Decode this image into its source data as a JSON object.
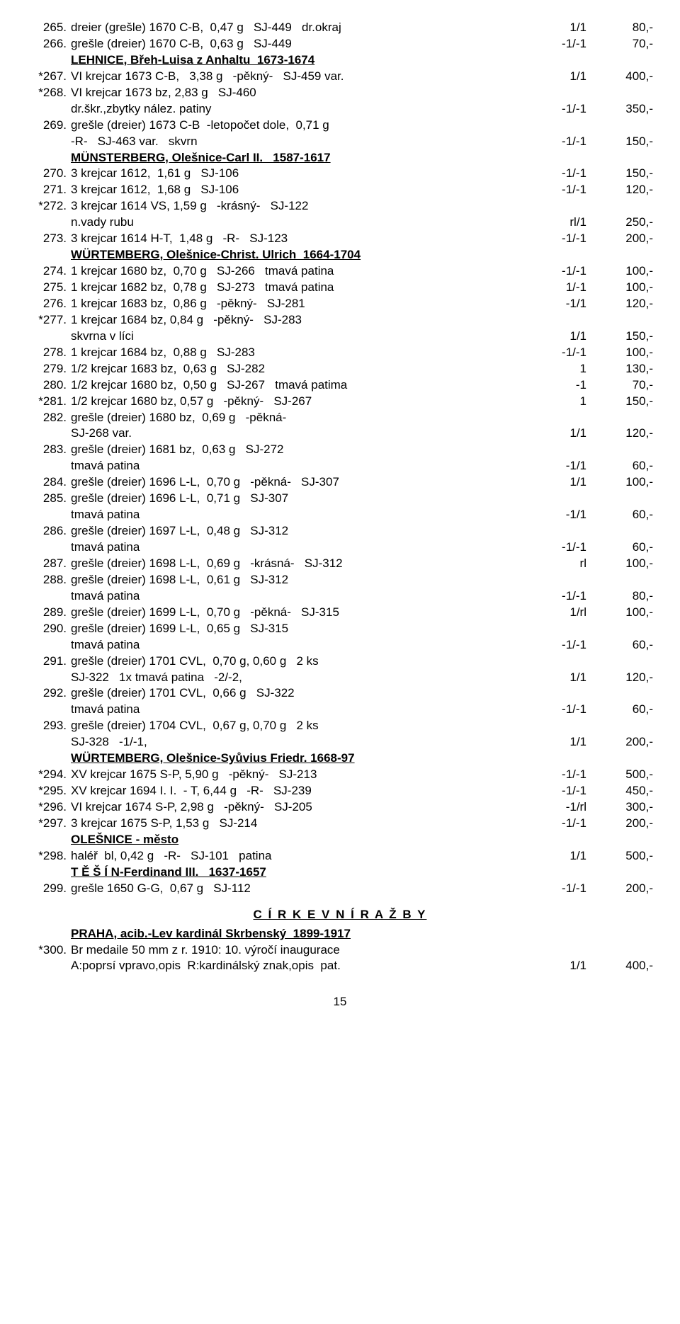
{
  "rows": [
    {
      "n": "265.",
      "d": "dreier (grešle) 1670 C-B,  0,47 g   SJ-449   dr.okraj",
      "g": "1/1",
      "p": "80,-"
    },
    {
      "n": "266.",
      "d": "grešle (dreier) 1670 C-B,  0,63 g   SJ-449",
      "g": "-1/-1",
      "p": "70,-"
    },
    {
      "n": "",
      "d": "<span class='section'>LEHNICE, Břeh-Luisa z Anhaltu  1673-1674</span>",
      "g": "",
      "p": ""
    },
    {
      "n": "*267.",
      "d": "VI krejcar 1673 C-B,   3,38 g   -pěkný-   SJ-459 var.",
      "g": "1/1",
      "p": "400,-"
    },
    {
      "n": "*268.",
      "d": "VI krejcar 1673 bz, 2,83 g   SJ-460",
      "g": "",
      "p": ""
    },
    {
      "n": "",
      "d": "dr.škr.,zbytky nález. patiny",
      "g": "-1/-1",
      "p": "350,-"
    },
    {
      "n": "269.",
      "d": "grešle (dreier) 1673 C-B  -letopočet dole,  0,71 g",
      "g": "",
      "p": ""
    },
    {
      "n": "",
      "d": "-R-   SJ-463 var.   skvrn",
      "g": "-1/-1",
      "p": "150,-"
    },
    {
      "n": "",
      "d": "<span class='section'>MÜNSTERBERG, Olešnice-Carl II.   1587-1617</span>",
      "g": "",
      "p": ""
    },
    {
      "n": "270.",
      "d": "3 krejcar 1612,  1,61 g   SJ-106",
      "g": "-1/-1",
      "p": "150,-"
    },
    {
      "n": "271.",
      "d": "3 krejcar 1612,  1,68 g   SJ-106",
      "g": "-1/-1",
      "p": "120,-"
    },
    {
      "n": "*272.",
      "d": "3 krejcar 1614 VS, 1,59 g   -krásný-   SJ-122",
      "g": "",
      "p": ""
    },
    {
      "n": "",
      "d": "n.vady rubu",
      "g": "rl/1",
      "p": "250,-"
    },
    {
      "n": "273.",
      "d": "3 krejcar 1614 H-T,  1,48 g   -R-   SJ-123",
      "g": "-1/-1",
      "p": "200,-"
    },
    {
      "n": "",
      "d": "<span class='section'>WÜRTEMBERG, Olešnice-Christ. Ulrich  1664-1704</span>",
      "g": "",
      "p": ""
    },
    {
      "n": "274.",
      "d": "1 krejcar 1680 bz,  0,70 g   SJ-266   tmavá patina",
      "g": "-1/-1",
      "p": "100,-"
    },
    {
      "n": "275.",
      "d": "1 krejcar 1682 bz,  0,78 g   SJ-273   tmavá patina",
      "g": "1/-1",
      "p": "100,-"
    },
    {
      "n": "276.",
      "d": "1 krejcar 1683 bz,  0,86 g   -pěkný-   SJ-281",
      "g": "-1/1",
      "p": "120,-"
    },
    {
      "n": "*277.",
      "d": "1 krejcar 1684 bz, 0,84 g   -pěkný-   SJ-283",
      "g": "",
      "p": ""
    },
    {
      "n": "",
      "d": "skvrna v líci",
      "g": "1/1",
      "p": "150,-"
    },
    {
      "n": "278.",
      "d": "1 krejcar 1684 bz,  0,88 g   SJ-283",
      "g": "-1/-1",
      "p": "100,-"
    },
    {
      "n": "279.",
      "d": "1/2 krejcar 1683 bz,  0,63 g   SJ-282",
      "g": "1",
      "p": "130,-"
    },
    {
      "n": "280.",
      "d": "1/2 krejcar 1680 bz,  0,50 g   SJ-267   tmavá patima",
      "g": "-1",
      "p": "70,-"
    },
    {
      "n": "*281.",
      "d": "1/2 krejcar 1680 bz, 0,57 g   -pěkný-   SJ-267",
      "g": "1",
      "p": "150,-"
    },
    {
      "n": "282.",
      "d": "grešle (dreier) 1680 bz,  0,69 g   -pěkná-",
      "g": "",
      "p": ""
    },
    {
      "n": "",
      "d": "SJ-268 var.",
      "g": "1/1",
      "p": "120,-"
    },
    {
      "n": "283.",
      "d": "grešle (dreier) 1681 bz,  0,63 g   SJ-272",
      "g": "",
      "p": ""
    },
    {
      "n": "",
      "d": "tmavá patina",
      "g": "-1/1",
      "p": "60,-"
    },
    {
      "n": "284.",
      "d": "grešle (dreier) 1696 L-L,  0,70 g   -pěkná-   SJ-307",
      "g": "1/1",
      "p": "100,-"
    },
    {
      "n": "285.",
      "d": "grešle (dreier) 1696 L-L,  0,71 g   SJ-307",
      "g": "",
      "p": ""
    },
    {
      "n": "",
      "d": "tmavá patina",
      "g": "-1/1",
      "p": "60,-"
    },
    {
      "n": "286.",
      "d": "grešle (dreier) 1697 L-L,  0,48 g   SJ-312",
      "g": "",
      "p": ""
    },
    {
      "n": "",
      "d": "tmavá patina",
      "g": "-1/-1",
      "p": "60,-"
    },
    {
      "n": "287.",
      "d": "grešle (dreier) 1698 L-L,  0,69 g   -krásná-   SJ-312",
      "g": "rl",
      "p": "100,-"
    },
    {
      "n": "288.",
      "d": "grešle (dreier) 1698 L-L,  0,61 g   SJ-312",
      "g": "",
      "p": ""
    },
    {
      "n": "",
      "d": "tmavá patina",
      "g": "-1/-1",
      "p": "80,-"
    },
    {
      "n": "289.",
      "d": "grešle (dreier) 1699 L-L,  0,70 g   -pěkná-   SJ-315",
      "g": "1/rl",
      "p": "100,-"
    },
    {
      "n": "290.",
      "d": "grešle (dreier) 1699 L-L,  0,65 g   SJ-315",
      "g": "",
      "p": ""
    },
    {
      "n": "",
      "d": "tmavá patina",
      "g": "-1/-1",
      "p": "60,-"
    },
    {
      "n": "291.",
      "d": "grešle (dreier) 1701 CVL,  0,70 g, 0,60 g   2 ks",
      "g": "",
      "p": ""
    },
    {
      "n": "",
      "d": "SJ-322   1x tmavá patina   -2/-2,",
      "g": "1/1",
      "p": "120,-"
    },
    {
      "n": "292.",
      "d": "grešle (dreier) 1701 CVL,  0,66 g   SJ-322",
      "g": "",
      "p": ""
    },
    {
      "n": "",
      "d": "tmavá patina",
      "g": "-1/-1",
      "p": "60,-"
    },
    {
      "n": "293.",
      "d": "grešle (dreier) 1704 CVL,  0,67 g, 0,70 g   2 ks",
      "g": "",
      "p": ""
    },
    {
      "n": "",
      "d": "SJ-328   -1/-1,",
      "g": "1/1",
      "p": "200,-"
    },
    {
      "n": "",
      "d": "<span class='section'>WÜRTEMBERG, Olešnice-Syůvius Friedr. 1668-97</span>",
      "g": "",
      "p": ""
    },
    {
      "n": "*294.",
      "d": "XV krejcar 1675 S-P, 5,90 g   -pěkný-   SJ-213",
      "g": "-1/-1",
      "p": "500,-"
    },
    {
      "n": "*295.",
      "d": "XV krejcar 1694 I. I.  - T, 6,44 g   -R-   SJ-239",
      "g": "-1/-1",
      "p": "450,-"
    },
    {
      "n": "*296.",
      "d": "VI krejcar 1674 S-P, 2,98 g   -pěkný-   SJ-205",
      "g": "-1/rl",
      "p": "300,-"
    },
    {
      "n": "*297.",
      "d": "3 krejcar 1675 S-P, 1,53 g   SJ-214",
      "g": "-1/-1",
      "p": "200,-"
    },
    {
      "n": "",
      "d": "<span class='section'>OLEŠNICE - město</span>",
      "g": "",
      "p": ""
    },
    {
      "n": "*298.",
      "d": "haléř  bl, 0,42 g   -R-   SJ-101   patina",
      "g": "1/1",
      "p": "500,-"
    },
    {
      "n": "",
      "d": "<span class='section'>T Ě Š Í N-Ferdinand III.   1637-1657</span>",
      "g": "",
      "p": ""
    },
    {
      "n": "299.",
      "d": "grešle 1650 G-G,  0,67 g   SJ-112",
      "g": "-1/-1",
      "p": "200,-"
    }
  ],
  "centerTitle": "C Í R K E V N Í   R A Ž B Y",
  "rows2": [
    {
      "n": "",
      "d": "<span class='section'>PRAHA, acib.-Lev kardinál Skrbenský  1899-1917</span>",
      "g": "",
      "p": ""
    },
    {
      "n": "*300.",
      "d": "Br medaile 50 mm z r. 1910: 10. výročí inaugurace",
      "g": "",
      "p": ""
    },
    {
      "n": "",
      "d": "A:poprsí vpravo,opis  R:kardinálský znak,opis  pat.",
      "g": "1/1",
      "p": "400,-"
    }
  ],
  "pageNumber": "15"
}
